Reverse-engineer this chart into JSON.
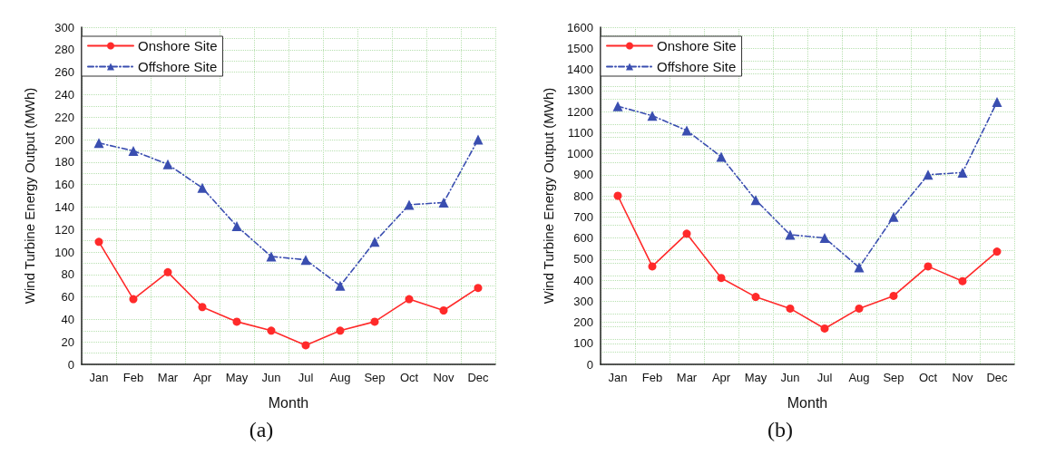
{
  "chart_data": [
    {
      "type": "line",
      "xlabel": "Month",
      "ylabel": "Wind Turbine Energy Output (MWh)",
      "annotations": [
        "(a)"
      ],
      "categories": [
        "Jan",
        "Feb",
        "Mar",
        "Apr",
        "May",
        "Jun",
        "Jul",
        "Aug",
        "Sep",
        "Oct",
        "Nov",
        "Dec"
      ],
      "ylim": [
        0,
        300
      ],
      "yticks": [
        0,
        20,
        40,
        60,
        80,
        100,
        120,
        140,
        160,
        180,
        200,
        220,
        240,
        260,
        280,
        300
      ],
      "grid": true,
      "legend": "top left",
      "series": [
        {
          "name": "Onshore Site",
          "color": "#ff2a2a",
          "marker": "circle",
          "line_style": "solid",
          "values": [
            109,
            58,
            82,
            51,
            38,
            30,
            17,
            30,
            38,
            58,
            48,
            68
          ]
        },
        {
          "name": "Offshore Site",
          "color": "#3a4eb0",
          "marker": "triangle",
          "line_style": "dashed",
          "values": [
            197,
            190,
            178,
            157,
            123,
            96,
            93,
            70,
            109,
            142,
            144,
            200
          ]
        }
      ]
    },
    {
      "type": "line",
      "xlabel": "Month",
      "ylabel": "Wind Turbine Energy Output (MWh)",
      "annotations": [
        "(b)"
      ],
      "categories": [
        "Jan",
        "Feb",
        "Mar",
        "Apr",
        "May",
        "Jun",
        "Jul",
        "Aug",
        "Sep",
        "Oct",
        "Nov",
        "Dec"
      ],
      "ylim": [
        0,
        1600
      ],
      "yticks": [
        0,
        100,
        200,
        300,
        400,
        500,
        600,
        700,
        800,
        900,
        1000,
        1100,
        1200,
        1300,
        1400,
        1500,
        1600
      ],
      "grid": true,
      "legend": "top left",
      "series": [
        {
          "name": "Onshore Site",
          "color": "#ff2a2a",
          "marker": "circle",
          "line_style": "solid",
          "values": [
            800,
            465,
            620,
            410,
            320,
            265,
            170,
            265,
            325,
            465,
            395,
            535
          ]
        },
        {
          "name": "Offshore Site",
          "color": "#3a4eb0",
          "marker": "triangle",
          "line_style": "dashed",
          "values": [
            1225,
            1180,
            1110,
            985,
            780,
            615,
            600,
            460,
            700,
            900,
            910,
            1245
          ]
        }
      ]
    }
  ]
}
